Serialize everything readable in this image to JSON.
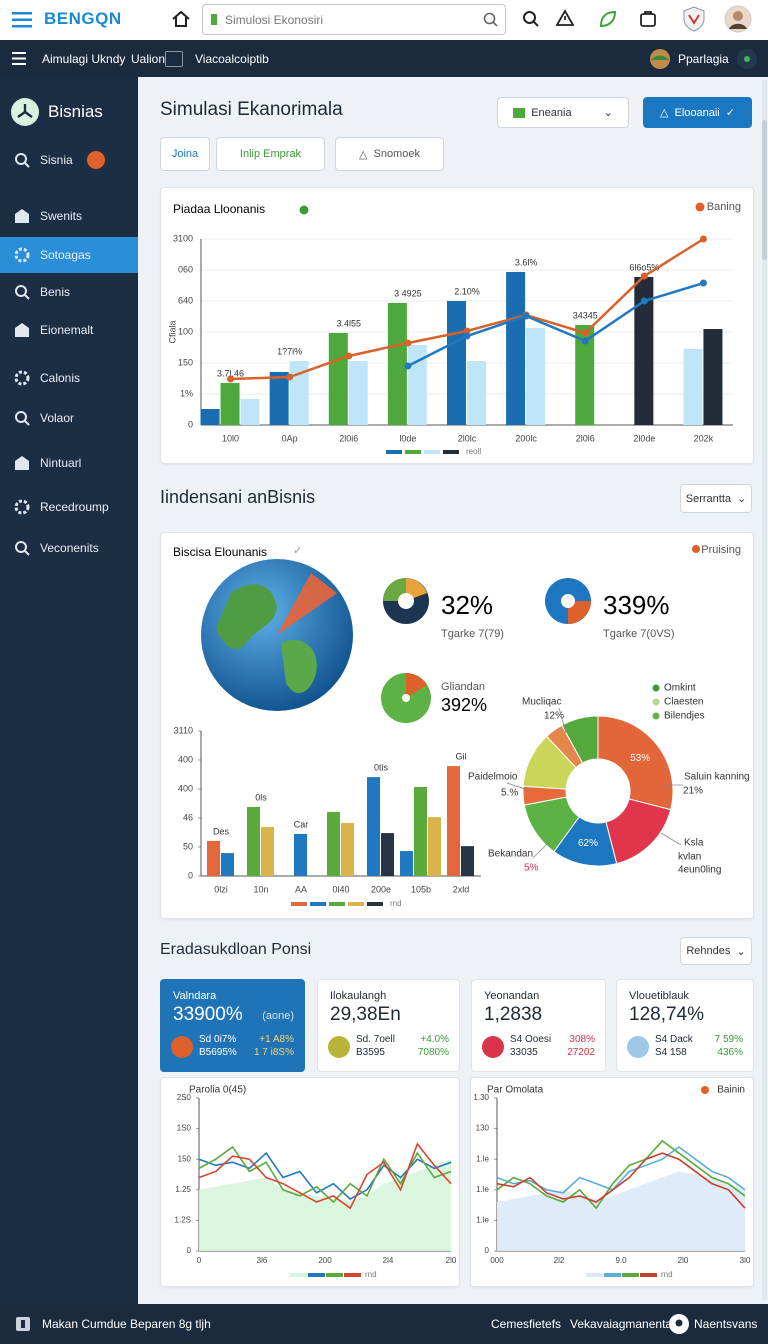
{
  "header": {
    "logo": "BENGQN",
    "search": "Simulosi Ekonosiri"
  },
  "subnav": {
    "items": [
      "Aimulagi Ukndy",
      "Ualion",
      "Viacoalcoiptib"
    ],
    "user": "Pparlagia"
  },
  "sidebar": {
    "brand": "Bisnias",
    "items": [
      "Sisnia",
      "Swenits",
      "Sotoagas",
      "Benis",
      "Eionemalt",
      "Calonis",
      "Volaor",
      "Nintuarl",
      "Recedroump",
      "Veconenits"
    ],
    "active": 2
  },
  "page": {
    "title": "Simulasi Ekanorimala",
    "dropdown": "Eneania",
    "button": "Elooanaii",
    "tabs": [
      "Joina",
      "Inlip Emprak",
      "Snomoek"
    ]
  },
  "section2": {
    "title": "Iindensani anBisnis",
    "dropdown": "Serrantta",
    "card_title": "Biscisa Elounanis",
    "card_link": "Pruising",
    "stats": [
      {
        "value": "32%",
        "caption": "Tgarke 7(79)"
      },
      {
        "value": "339%",
        "caption": "Tgarke 7(0VS)"
      },
      {
        "value": "392%",
        "caption": "Gliandan"
      }
    ]
  },
  "section3": {
    "title": "Eradasukdloan Ponsi",
    "dropdown": "Rehndes",
    "kpis": [
      {
        "label": "Valndara",
        "value": "33900%",
        "note": "(aone)",
        "rows": [
          [
            "Sd 0i7%",
            "+1 A8%"
          ],
          [
            "B5695%",
            "1 7 i8S%"
          ]
        ]
      },
      {
        "label": "Ilokaulangh",
        "value": "29,38En",
        "rows": [
          [
            "Sd. 7oell",
            "+4.0%"
          ],
          [
            "B3595",
            "7080%"
          ]
        ]
      },
      {
        "label": "Yeonandan",
        "value": "1,2838",
        "rows": [
          [
            "S4 Ooesi",
            "308%"
          ],
          [
            "33035",
            "27202"
          ]
        ]
      },
      {
        "label": "Vlouetiblauk",
        "value": "128,74%",
        "rows": [
          [
            "S4 Dack",
            "7 59%"
          ],
          [
            "S4 158",
            "436%"
          ]
        ]
      }
    ]
  },
  "footer": {
    "text": "Makan Cumdue Beparen 8g tljh",
    "links": [
      "Cemesfietefs",
      "Vekavaiagmanenta",
      "Naentsvans"
    ]
  },
  "chart_data": [
    {
      "type": "bar",
      "title": "Piadaa Lloonanis",
      "link": "Baning",
      "y_label": "Cfiala",
      "categories": [
        "10l0",
        "0Ap",
        "2l0i6",
        "l0de",
        "2l0lc",
        "200lc",
        "2l0l6",
        "2l0de",
        "202k"
      ],
      "ylim": [
        0,
        3000
      ],
      "yticks": [
        0,
        {
          "value": 500,
          "label": "1%"
        },
        {
          "value": 1000,
          "label": "150"
        },
        {
          "value": 1500,
          "label": "100"
        },
        {
          "value": 2000,
          "label": "640"
        },
        {
          "value": 2500,
          "label": "060"
        },
        {
          "value": 3000,
          "label": "3100"
        }
      ],
      "grid": true,
      "series": [
        {
          "color": "#1a6db0",
          "values": [
            258,
            855,
            null,
            null,
            2000,
            2468,
            null,
            null,
            null
          ]
        },
        {
          "color": "#4ea83c",
          "values": [
            677,
            null,
            1484,
            1968,
            null,
            null,
            1613,
            null,
            null
          ]
        },
        {
          "color": "#bfe6f8",
          "values": [
            419,
            1032,
            1032,
            1290,
            1032,
            1565,
            null,
            null,
            1226
          ]
        },
        {
          "color": "#232c38",
          "values": [
            null,
            null,
            null,
            null,
            null,
            null,
            null,
            2387,
            1548
          ]
        },
        {
          "type": "line",
          "color": "#d8612c",
          "markers": true,
          "values": [
            742,
            774,
            1113,
            1323,
            1516,
            1774,
            1484,
            2403,
            3000
          ]
        },
        {
          "type": "line",
          "color": "#1f78c0",
          "markers": true,
          "values": [
            null,
            null,
            null,
            952,
            1435,
            1758,
            1355,
            2000,
            2290
          ]
        }
      ],
      "annotations": [
        "3.7l.46",
        "1?7i%",
        "3.4l55",
        "3 4925",
        "2.10%",
        "3.6l%",
        "34345",
        "6l6o5%",
        null
      ],
      "legend_text": "reoll"
    },
    {
      "type": "bar",
      "categories": [
        "0lzi",
        "10n",
        "AA",
        "0l40",
        "200e",
        "105b",
        "2xld"
      ],
      "ylim": [
        0,
        500
      ],
      "yticks": [
        0,
        {
          "value": 100,
          "label": "50"
        },
        {
          "value": 200,
          "label": "46"
        },
        {
          "value": 300,
          "label": "400"
        },
        {
          "value": 400,
          "label": "400"
        },
        {
          "value": 500,
          "label": "3110"
        }
      ],
      "grid": false,
      "series": [
        {
          "color": "#e2673a",
          "values": [
            121,
            null,
            null,
            null,
            null,
            null,
            379
          ]
        },
        {
          "color": "#1f78c0",
          "values": [
            79,
            null,
            145,
            null,
            341,
            86,
            null
          ]
        },
        {
          "color": "#5aaa3c",
          "values": [
            null,
            238,
            null,
            221,
            null,
            307,
            null
          ]
        },
        {
          "color": "#d9b44a",
          "values": [
            null,
            169,
            null,
            183,
            null,
            203,
            null
          ]
        },
        {
          "color": "#263445",
          "values": [
            null,
            null,
            null,
            null,
            148,
            null,
            103
          ]
        }
      ],
      "annotations": [
        "Des",
        "0ls",
        "Car",
        null,
        "0tis",
        null,
        "Gil"
      ],
      "legend_text": "rnd"
    },
    {
      "type": "pie",
      "donut": true,
      "values": [
        29,
        17,
        14,
        12,
        4,
        12,
        4,
        8
      ],
      "colors": [
        "#e3663a",
        "#e0354a",
        "#1d76c0",
        "#5cb245",
        "#e86a3a",
        "#c9d65a",
        "#e5874a",
        "#55a83c"
      ],
      "slice_labels": [
        "53%",
        null,
        "62%",
        null,
        null,
        null,
        null,
        null
      ],
      "annotations": [
        "Mucliqac",
        "12%",
        "Paidelmoio",
        "5.%",
        "Bekandan",
        "5%",
        "Saluin kanning",
        "21%",
        "Ksla",
        "kvlan",
        "4eun0ling"
      ],
      "legend": [
        {
          "name": "Omkint",
          "color": "#3d9a3a"
        },
        {
          "name": "Claesten",
          "color": "#b7d98f"
        },
        {
          "name": "Bilendjes",
          "color": "#6ab04c"
        }
      ]
    },
    {
      "type": "line",
      "title": "Parolia 0(45)",
      "ylim": [
        0,
        250
      ],
      "yticks": [
        0,
        {
          "value": 50,
          "label": "1.2S"
        },
        {
          "value": 100,
          "label": "1.25"
        },
        150,
        {
          "value": 200,
          "label": "1S0"
        },
        {
          "value": 250,
          "label": "2S0"
        }
      ],
      "xtick_labels": [
        "0",
        "3l6",
        "200",
        "2l4",
        "2l0"
      ],
      "series": [
        {
          "color": "#d6f5dc",
          "fill": true,
          "values": [
            100,
            105,
            110,
            115,
            120,
            100,
            95,
            90,
            85,
            80,
            90,
            110,
            120,
            130,
            140,
            150
          ]
        },
        {
          "color": "#1f78c0",
          "values": [
            150,
            140,
            145,
            135,
            160,
            120,
            130,
            95,
            110,
            85,
            100,
            140,
            120,
            150,
            135,
            145
          ]
        },
        {
          "color": "#5aaa3c",
          "values": [
            135,
            150,
            170,
            130,
            145,
            100,
            90,
            105,
            80,
            110,
            90,
            150,
            110,
            160,
            120,
            130
          ]
        },
        {
          "color": "#d8452c",
          "values": [
            120,
            130,
            155,
            150,
            120,
            110,
            95,
            80,
            90,
            70,
            125,
            145,
            100,
            175,
            140,
            110
          ]
        }
      ],
      "legend_text": "rnd"
    },
    {
      "type": "line",
      "title": "Par Omolata",
      "link": "Bainin",
      "ylim": [
        0,
        250
      ],
      "yticks": [
        0,
        {
          "value": 50,
          "label": "1.le"
        },
        {
          "value": 100,
          "label": "1.le"
        },
        {
          "value": 150,
          "label": "1.le"
        },
        {
          "value": 200,
          "label": "130"
        },
        {
          "value": 250,
          "label": "1.30"
        }
      ],
      "xtick_labels": [
        "000",
        "2l2",
        "9.0",
        "2l0",
        "3l0"
      ],
      "series": [
        {
          "color": "#dbe9f7",
          "fill": true,
          "values": [
            80,
            85,
            90,
            95,
            100,
            90,
            85,
            90,
            100,
            110,
            120,
            130,
            125,
            120,
            110,
            100
          ]
        },
        {
          "color": "#5aaed8",
          "values": [
            120,
            110,
            115,
            100,
            95,
            120,
            110,
            100,
            130,
            140,
            150,
            170,
            150,
            130,
            120,
            100
          ]
        },
        {
          "color": "#5aaa3c",
          "values": [
            100,
            120,
            110,
            90,
            80,
            100,
            70,
            110,
            140,
            150,
            180,
            160,
            140,
            120,
            110,
            90
          ]
        },
        {
          "color": "#c8402c",
          "values": [
            110,
            105,
            120,
            95,
            85,
            90,
            80,
            100,
            120,
            150,
            160,
            150,
            130,
            110,
            100,
            70
          ]
        }
      ],
      "legend_text": "rnd"
    }
  ]
}
